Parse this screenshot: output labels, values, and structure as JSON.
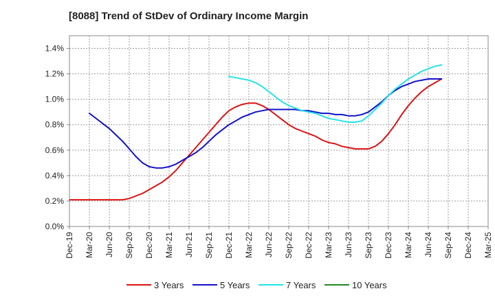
{
  "chart_data": {
    "type": "line",
    "title": "[8088]  Trend of StDev of Ordinary Income Margin",
    "xlabel": "",
    "ylabel": "",
    "x_ticks": [
      "Dec-19",
      "Mar-20",
      "Jun-20",
      "Sep-20",
      "Dec-20",
      "Mar-21",
      "Jun-21",
      "Sep-21",
      "Dec-21",
      "Mar-22",
      "Jun-22",
      "Sep-22",
      "Dec-22",
      "Mar-23",
      "Jun-23",
      "Sep-23",
      "Dec-23",
      "Mar-24",
      "Jun-24",
      "Sep-24",
      "Dec-24",
      "Mar-25"
    ],
    "y_ticks": [
      "0.0%",
      "0.2%",
      "0.4%",
      "0.6%",
      "0.8%",
      "1.0%",
      "1.2%",
      "1.4%"
    ],
    "ylim": [
      0,
      1.5
    ],
    "y_unit": "%",
    "grid": true,
    "legend_position": "bottom",
    "series": [
      {
        "name": "3 Years",
        "color": "#dd1111",
        "points": [
          [
            "Dec-19",
            0.21
          ],
          [
            "Jan-20",
            0.21
          ],
          [
            "Feb-20",
            0.21
          ],
          [
            "Mar-20",
            0.21
          ],
          [
            "Apr-20",
            0.21
          ],
          [
            "May-20",
            0.21
          ],
          [
            "Jun-20",
            0.21
          ],
          [
            "Jul-20",
            0.21
          ],
          [
            "Aug-20",
            0.21
          ],
          [
            "Sep-20",
            0.22
          ],
          [
            "Oct-20",
            0.24
          ],
          [
            "Nov-20",
            0.26
          ],
          [
            "Dec-20",
            0.29
          ],
          [
            "Jan-21",
            0.32
          ],
          [
            "Feb-21",
            0.35
          ],
          [
            "Mar-21",
            0.39
          ],
          [
            "Apr-21",
            0.44
          ],
          [
            "May-21",
            0.5
          ],
          [
            "Jun-21",
            0.56
          ],
          [
            "Jul-21",
            0.62
          ],
          [
            "Aug-21",
            0.68
          ],
          [
            "Sep-21",
            0.74
          ],
          [
            "Oct-21",
            0.8
          ],
          [
            "Nov-21",
            0.86
          ],
          [
            "Dec-21",
            0.91
          ],
          [
            "Jan-22",
            0.94
          ],
          [
            "Feb-22",
            0.96
          ],
          [
            "Mar-22",
            0.97
          ],
          [
            "Apr-22",
            0.97
          ],
          [
            "May-22",
            0.95
          ],
          [
            "Jun-22",
            0.92
          ],
          [
            "Jul-22",
            0.88
          ],
          [
            "Aug-22",
            0.84
          ],
          [
            "Sep-22",
            0.8
          ],
          [
            "Oct-22",
            0.77
          ],
          [
            "Nov-22",
            0.75
          ],
          [
            "Dec-22",
            0.73
          ],
          [
            "Jan-23",
            0.71
          ],
          [
            "Feb-23",
            0.68
          ],
          [
            "Mar-23",
            0.66
          ],
          [
            "Apr-23",
            0.65
          ],
          [
            "May-23",
            0.63
          ],
          [
            "Jun-23",
            0.62
          ],
          [
            "Jul-23",
            0.61
          ],
          [
            "Aug-23",
            0.61
          ],
          [
            "Sep-23",
            0.61
          ],
          [
            "Oct-23",
            0.63
          ],
          [
            "Nov-23",
            0.67
          ],
          [
            "Dec-23",
            0.73
          ],
          [
            "Jan-24",
            0.8
          ],
          [
            "Feb-24",
            0.88
          ],
          [
            "Mar-24",
            0.95
          ],
          [
            "Apr-24",
            1.01
          ],
          [
            "May-24",
            1.06
          ],
          [
            "Jun-24",
            1.1
          ],
          [
            "Jul-24",
            1.13
          ],
          [
            "Aug-24",
            1.16
          ]
        ]
      },
      {
        "name": "5 Years",
        "color": "#1111cc",
        "points": [
          [
            "Mar-20",
            0.89
          ],
          [
            "Apr-20",
            0.85
          ],
          [
            "May-20",
            0.81
          ],
          [
            "Jun-20",
            0.77
          ],
          [
            "Jul-20",
            0.72
          ],
          [
            "Aug-20",
            0.67
          ],
          [
            "Sep-20",
            0.61
          ],
          [
            "Oct-20",
            0.55
          ],
          [
            "Nov-20",
            0.5
          ],
          [
            "Dec-20",
            0.47
          ],
          [
            "Jan-21",
            0.46
          ],
          [
            "Feb-21",
            0.46
          ],
          [
            "Mar-21",
            0.47
          ],
          [
            "Apr-21",
            0.49
          ],
          [
            "May-21",
            0.52
          ],
          [
            "Jun-21",
            0.55
          ],
          [
            "Jul-21",
            0.58
          ],
          [
            "Aug-21",
            0.62
          ],
          [
            "Sep-21",
            0.67
          ],
          [
            "Oct-21",
            0.72
          ],
          [
            "Nov-21",
            0.76
          ],
          [
            "Dec-21",
            0.8
          ],
          [
            "Jan-22",
            0.83
          ],
          [
            "Feb-22",
            0.86
          ],
          [
            "Mar-22",
            0.88
          ],
          [
            "Apr-22",
            0.9
          ],
          [
            "May-22",
            0.91
          ],
          [
            "Jun-22",
            0.92
          ],
          [
            "Jul-22",
            0.92
          ],
          [
            "Aug-22",
            0.92
          ],
          [
            "Sep-22",
            0.92
          ],
          [
            "Oct-22",
            0.92
          ],
          [
            "Nov-22",
            0.91
          ],
          [
            "Dec-22",
            0.91
          ],
          [
            "Jan-23",
            0.9
          ],
          [
            "Feb-23",
            0.89
          ],
          [
            "Mar-23",
            0.89
          ],
          [
            "Apr-23",
            0.88
          ],
          [
            "May-23",
            0.88
          ],
          [
            "Jun-23",
            0.87
          ],
          [
            "Jul-23",
            0.87
          ],
          [
            "Aug-23",
            0.88
          ],
          [
            "Sep-23",
            0.9
          ],
          [
            "Oct-23",
            0.94
          ],
          [
            "Nov-23",
            0.98
          ],
          [
            "Dec-23",
            1.03
          ],
          [
            "Jan-24",
            1.07
          ],
          [
            "Feb-24",
            1.1
          ],
          [
            "Mar-24",
            1.12
          ],
          [
            "Apr-24",
            1.14
          ],
          [
            "May-24",
            1.15
          ],
          [
            "Jun-24",
            1.16
          ],
          [
            "Jul-24",
            1.16
          ],
          [
            "Aug-24",
            1.16
          ]
        ]
      },
      {
        "name": "7 Years",
        "color": "#22e3e8",
        "points": [
          [
            "Dec-21",
            1.18
          ],
          [
            "Jan-22",
            1.17
          ],
          [
            "Feb-22",
            1.16
          ],
          [
            "Mar-22",
            1.15
          ],
          [
            "Apr-22",
            1.13
          ],
          [
            "May-22",
            1.1
          ],
          [
            "Jun-22",
            1.06
          ],
          [
            "Jul-22",
            1.02
          ],
          [
            "Aug-22",
            0.98
          ],
          [
            "Sep-22",
            0.95
          ],
          [
            "Oct-22",
            0.93
          ],
          [
            "Nov-22",
            0.91
          ],
          [
            "Dec-22",
            0.9
          ],
          [
            "Jan-23",
            0.89
          ],
          [
            "Feb-23",
            0.87
          ],
          [
            "Mar-23",
            0.85
          ],
          [
            "Apr-23",
            0.84
          ],
          [
            "May-23",
            0.83
          ],
          [
            "Jun-23",
            0.82
          ],
          [
            "Jul-23",
            0.82
          ],
          [
            "Aug-23",
            0.83
          ],
          [
            "Sep-23",
            0.87
          ],
          [
            "Oct-23",
            0.92
          ],
          [
            "Nov-23",
            0.97
          ],
          [
            "Dec-23",
            1.03
          ],
          [
            "Jan-24",
            1.08
          ],
          [
            "Feb-24",
            1.12
          ],
          [
            "Mar-24",
            1.16
          ],
          [
            "Apr-24",
            1.19
          ],
          [
            "May-24",
            1.22
          ],
          [
            "Jun-24",
            1.24
          ],
          [
            "Jul-24",
            1.26
          ],
          [
            "Aug-24",
            1.27
          ]
        ]
      },
      {
        "name": "10 Years",
        "color": "#228822",
        "points": []
      }
    ]
  }
}
